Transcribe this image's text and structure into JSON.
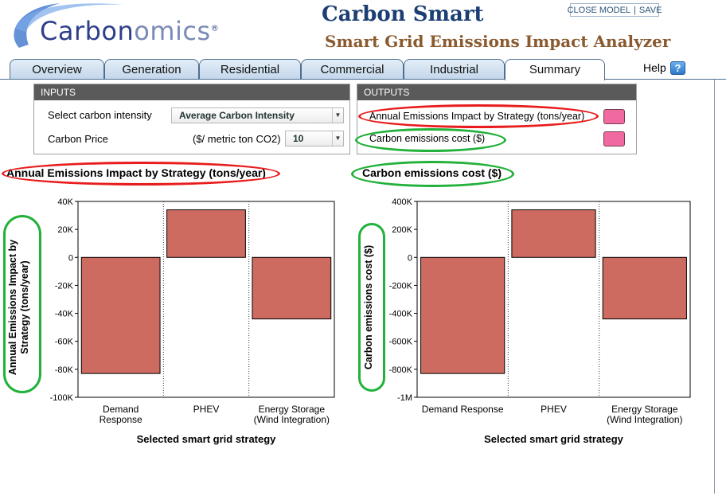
{
  "header": {
    "logo_parts": [
      "Carbon",
      "omics",
      "®"
    ],
    "app_title": "Carbon Smart",
    "app_subtitle": "Smart Grid Emissions Impact Analyzer",
    "close_model": "CLOSE MODEL",
    "separator": "|",
    "save": "SAVE"
  },
  "tabs": [
    {
      "label": "Overview",
      "active": false
    },
    {
      "label": "Generation",
      "active": false
    },
    {
      "label": "Residential",
      "active": false
    },
    {
      "label": "Commercial",
      "active": false
    },
    {
      "label": "Industrial",
      "active": false
    },
    {
      "label": "Summary",
      "active": true
    }
  ],
  "help": {
    "label": "Help",
    "icon": "help-icon",
    "glyph": "?"
  },
  "inputs": {
    "header": "INPUTS",
    "carbon_intensity_label": "Select carbon intensity",
    "carbon_intensity_value": "Average Carbon Intensity",
    "carbon_price_label": "Carbon Price",
    "carbon_price_unit": "($/ metric ton CO2)",
    "carbon_price_value": "10"
  },
  "outputs": {
    "header": "OUTPUTS",
    "items": [
      {
        "label": "Annual Emissions Impact by Strategy  (tons/year)",
        "swatch_color": "#f06a9f",
        "highlight": "red"
      },
      {
        "label": "Carbon emissions cost ($)",
        "swatch_color": "#f06a9f",
        "highlight": "green"
      }
    ]
  },
  "chart_titles": {
    "left": "Annual Emissions Impact by Strategy (tons/year)",
    "right": "Carbon emissions cost ($)"
  },
  "chart_data": [
    {
      "type": "bar",
      "title": "Annual Emissions Impact by Strategy (tons/year)",
      "xlabel": "Selected smart grid strategy",
      "ylabel": "Annual Emissions Impact by Strategy (tons/year)",
      "categories": [
        [
          "Demand",
          "Response"
        ],
        [
          "PHEV"
        ],
        [
          "Energy Storage",
          "(Wind Integration)"
        ]
      ],
      "values": [
        -83000,
        34000,
        -44000
      ],
      "ylim": [
        -100000,
        40000
      ],
      "yticks": [
        40000,
        20000,
        0,
        -20000,
        -40000,
        -60000,
        -80000,
        -100000
      ],
      "ytick_labels": [
        "40K",
        "20K",
        "0",
        "-20K",
        "-40K",
        "-60K",
        "-80K",
        "-100K"
      ],
      "bar_color": "#cd6b60",
      "grid": true
    },
    {
      "type": "bar",
      "title": "Carbon emissions cost ($)",
      "xlabel": "Selected smart grid strategy",
      "ylabel": "Carbon emissions cost ($)",
      "categories": [
        [
          "Demand Response"
        ],
        [
          "PHEV"
        ],
        [
          "Energy Storage",
          "(Wind Integration)"
        ]
      ],
      "values": [
        -830000,
        340000,
        -440000
      ],
      "ylim": [
        -1000000,
        400000
      ],
      "yticks": [
        400000,
        200000,
        0,
        -200000,
        -400000,
        -600000,
        -800000,
        -1000000
      ],
      "ytick_labels": [
        "400K",
        "200K",
        "0",
        "-200K",
        "-400K",
        "-600K",
        "-800K",
        "-1M"
      ],
      "bar_color": "#cd6b60",
      "grid": true
    }
  ]
}
